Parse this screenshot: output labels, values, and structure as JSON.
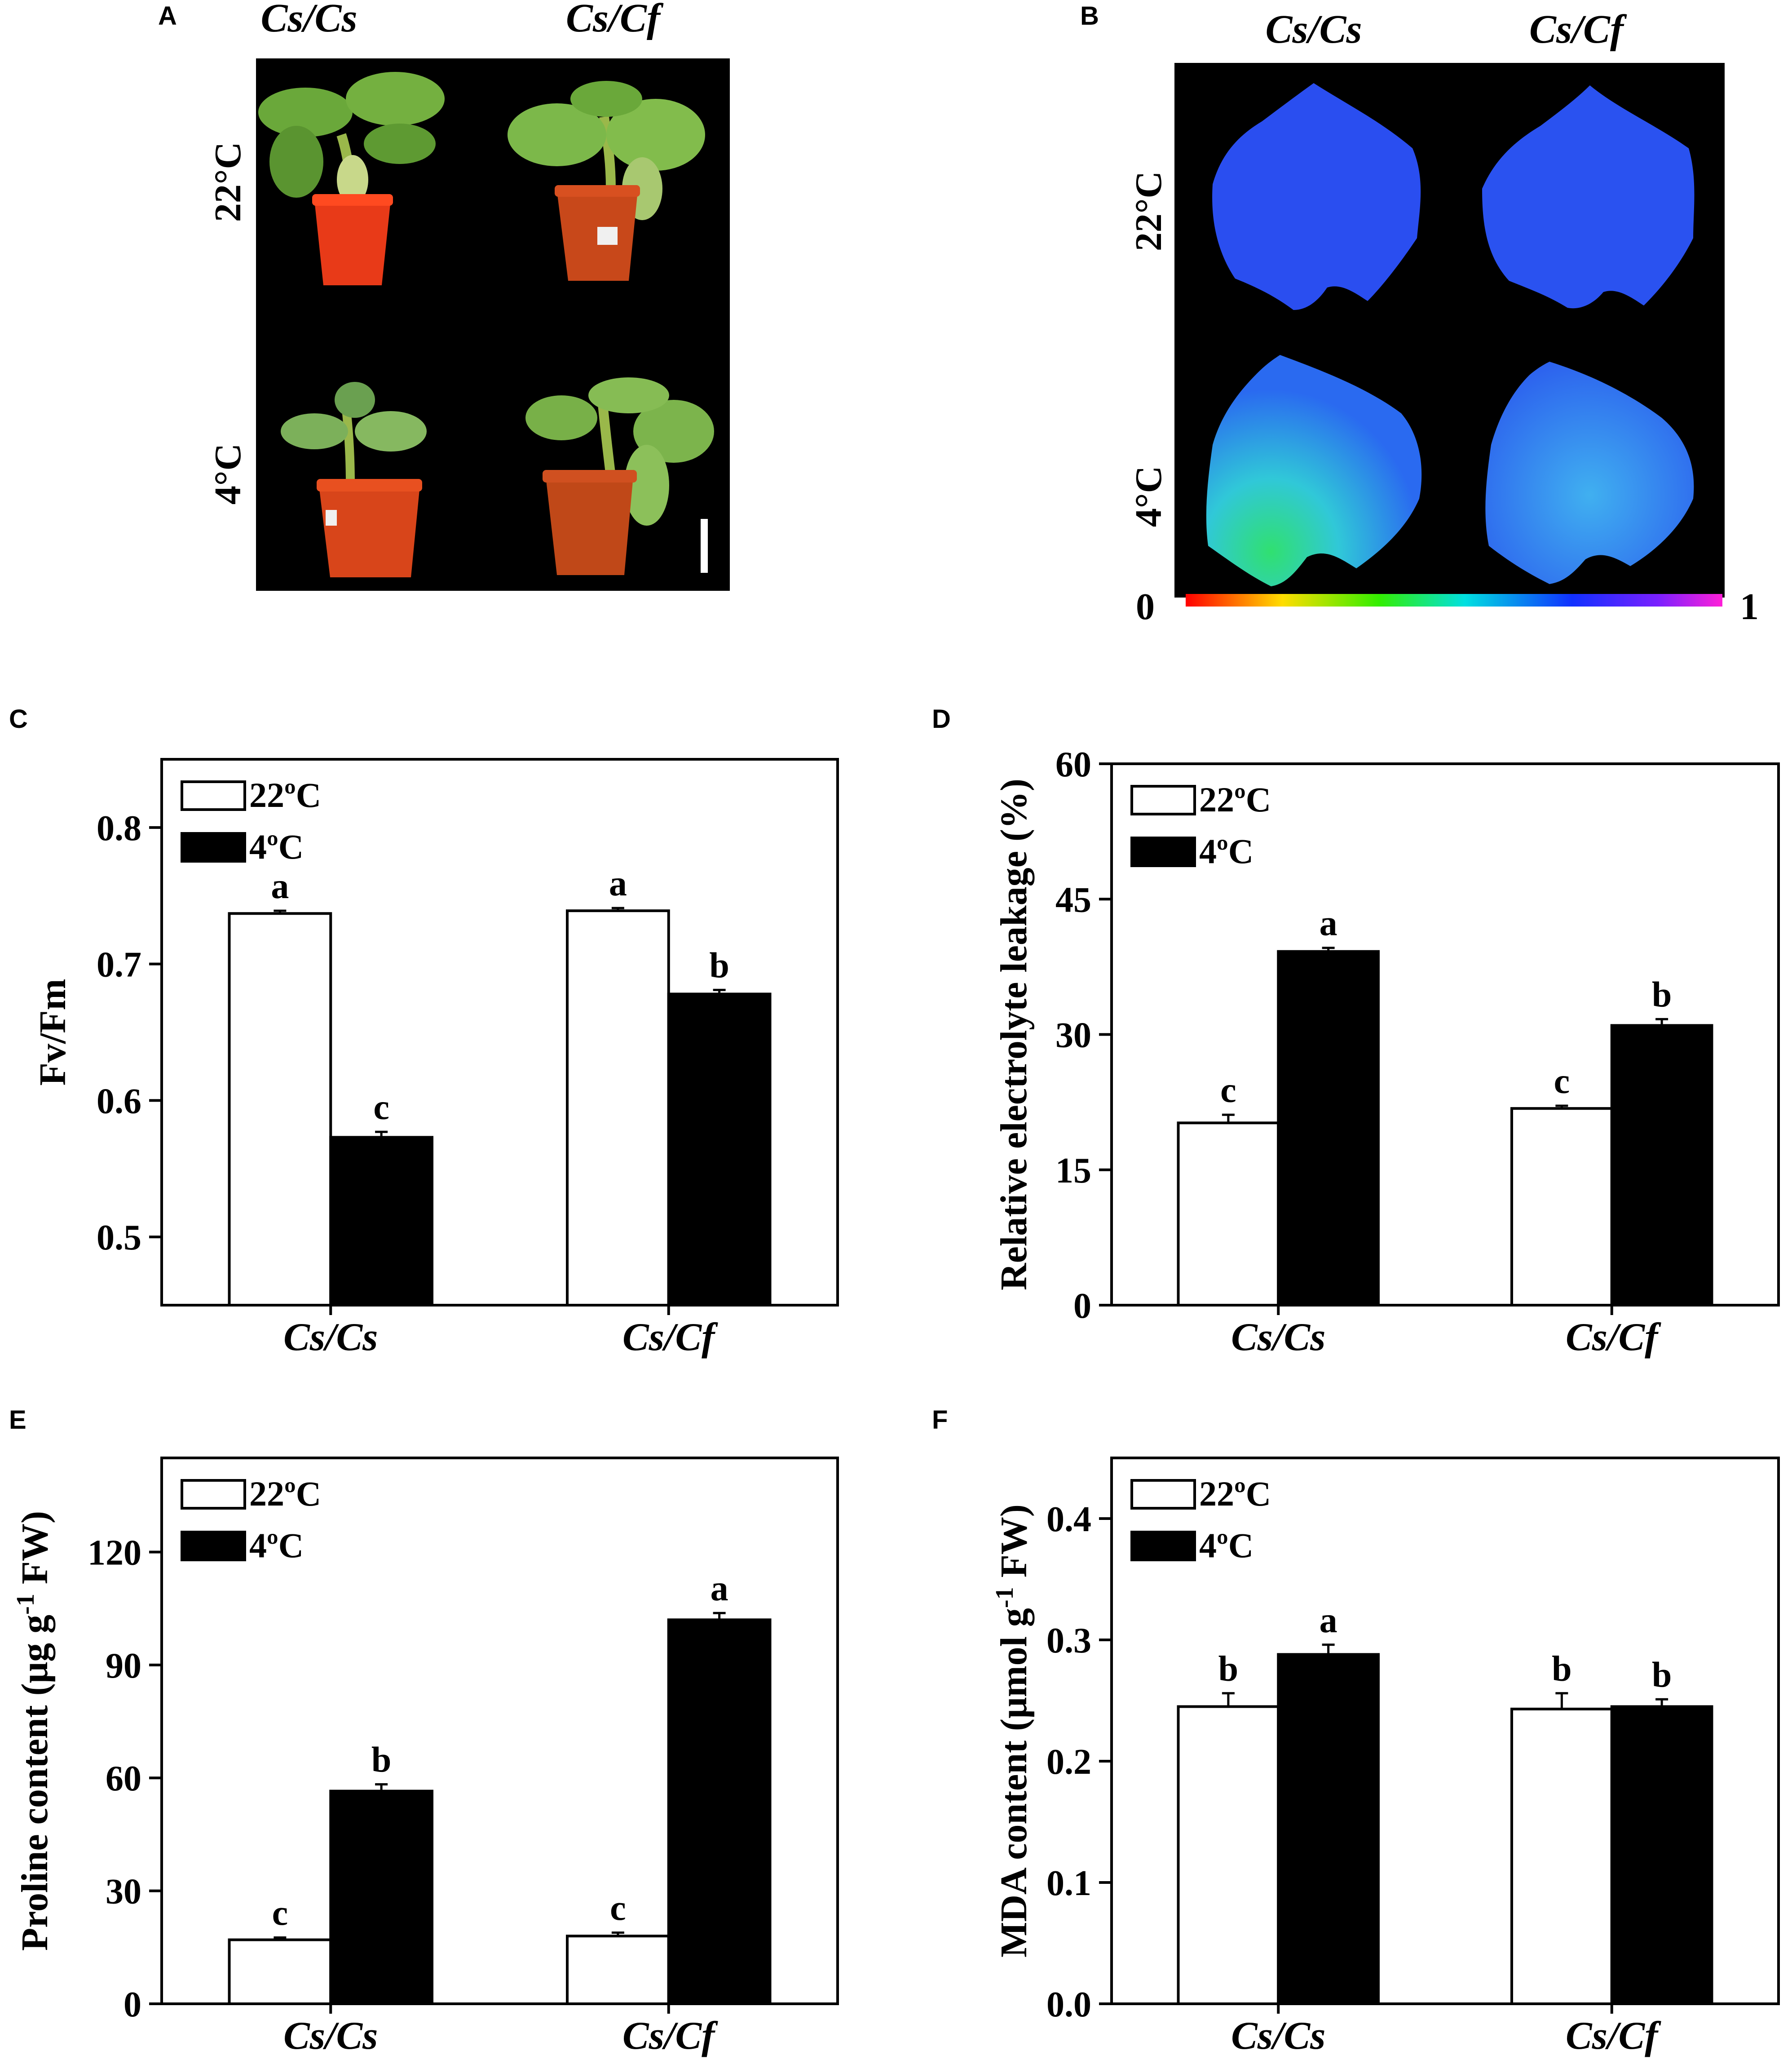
{
  "photo_panels": [
    {
      "letter": "A",
      "col_headers": [
        "Cs/Cs",
        "Cs/Cf"
      ],
      "row_headers": [
        "22°C",
        "4°C"
      ]
    },
    {
      "letter": "B",
      "col_headers": [
        "Cs/Cs",
        "Cs/Cf"
      ],
      "row_headers": [
        "22°C",
        "4°C"
      ],
      "colorbar_min": "0",
      "colorbar_max": "1"
    }
  ],
  "chart_data": [
    {
      "panel": "C",
      "type": "bar",
      "categories": [
        "Cs/Cs",
        "Cs/Cf"
      ],
      "ylabel": "Fv/Fm",
      "ylim": [
        0.45,
        0.85
      ],
      "yticks": [
        0.5,
        0.6,
        0.7,
        0.8
      ],
      "ytick_labels": [
        "0.5",
        "0.6",
        "0.7",
        "0.8"
      ],
      "legend": "top-left",
      "series": [
        {
          "name": "22ºC",
          "values": [
            0.737,
            0.739
          ],
          "errors": [
            0.002,
            0.002
          ],
          "labels": [
            "a",
            "a"
          ],
          "color": "#ffffff"
        },
        {
          "name": "4ºC",
          "values": [
            0.573,
            0.678
          ],
          "errors": [
            0.004,
            0.003
          ],
          "labels": [
            "c",
            "b"
          ],
          "color": "#000000"
        }
      ]
    },
    {
      "panel": "D",
      "type": "bar",
      "categories": [
        "Cs/Cs",
        "Cs/Cf"
      ],
      "ylabel": "Relative electrolyte leakage (%)",
      "ylim": [
        0,
        60
      ],
      "yticks": [
        0,
        15,
        30,
        45,
        60
      ],
      "ytick_labels": [
        "0",
        "15",
        "30",
        "45",
        "60"
      ],
      "legend": "top-left",
      "series": [
        {
          "name": "22ºC",
          "values": [
            20.2,
            21.8
          ],
          "errors": [
            0.9,
            0.3
          ],
          "labels": [
            "c",
            "c"
          ],
          "color": "#ffffff"
        },
        {
          "name": "4ºC",
          "values": [
            39.2,
            31.0
          ],
          "errors": [
            0.4,
            0.7
          ],
          "labels": [
            "a",
            "b"
          ],
          "color": "#000000"
        }
      ]
    },
    {
      "panel": "E",
      "type": "bar",
      "categories": [
        "Cs/Cs",
        "Cs/Cf"
      ],
      "ylabel": "Proline content (μg g-1 FW)",
      "ylim": [
        0,
        145
      ],
      "yticks": [
        0,
        30,
        60,
        90,
        120
      ],
      "ytick_labels": [
        "0",
        "30",
        "60",
        "90",
        "120"
      ],
      "legend": "top-left",
      "series": [
        {
          "name": "22ºC",
          "values": [
            17.0,
            18.0
          ],
          "errors": [
            0.6,
            0.9
          ],
          "labels": [
            "c",
            "c"
          ],
          "color": "#ffffff"
        },
        {
          "name": "4ºC",
          "values": [
            56.5,
            102.0
          ],
          "errors": [
            1.8,
            1.8
          ],
          "labels": [
            "b",
            "a"
          ],
          "color": "#000000"
        }
      ]
    },
    {
      "panel": "F",
      "type": "bar",
      "categories": [
        "Cs/Cs",
        "Cs/Cf"
      ],
      "ylabel": "MDA content (μmol g-1 FW)",
      "ylim": [
        0,
        0.45
      ],
      "yticks": [
        0.0,
        0.1,
        0.2,
        0.3,
        0.4
      ],
      "ytick_labels": [
        "0.0",
        "0.1",
        "0.2",
        "0.3",
        "0.4"
      ],
      "legend": "top-left",
      "series": [
        {
          "name": "22ºC",
          "values": [
            0.245,
            0.243
          ],
          "errors": [
            0.011,
            0.013
          ],
          "labels": [
            "b",
            "b"
          ],
          "color": "#ffffff"
        },
        {
          "name": "4ºC",
          "values": [
            0.288,
            0.245
          ],
          "errors": [
            0.008,
            0.006
          ],
          "labels": [
            "a",
            "b"
          ],
          "color": "#000000"
        }
      ]
    }
  ]
}
